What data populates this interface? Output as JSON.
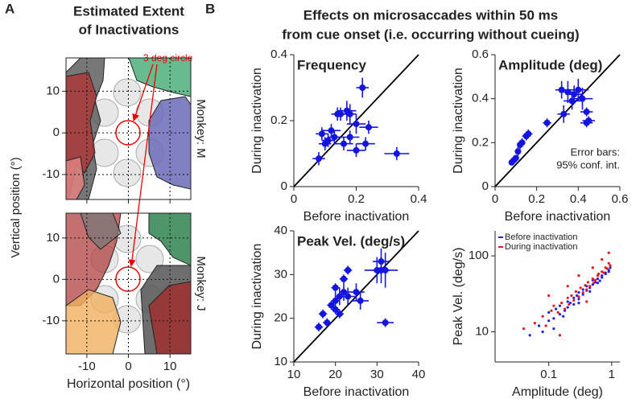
{
  "figure": {
    "panel_a_letter": "A",
    "panel_a_title": [
      "Estimated Extent",
      "of Inactivations"
    ],
    "panel_a_ylabel": "Vertical position (°)",
    "annotation": "3 deg circle",
    "panel_b_letter": "B",
    "panel_b_title": [
      "Effects on microsaccades within 50 ms",
      "from cue onset (i.e. occurring without cueing)"
    ]
  },
  "chart_data": [
    {
      "type": "map",
      "side_label": "Monkey: M",
      "xlim": [
        -15,
        15
      ],
      "ylim": [
        -16,
        18
      ],
      "xticks": [
        -10,
        0,
        10
      ],
      "yticks": [
        -10,
        0,
        10
      ],
      "xtick_labels": false,
      "grid": true
    },
    {
      "type": "map",
      "side_label": "Monkey: J",
      "xlabel": "Horizontal position (°)",
      "xlim": [
        -15,
        15
      ],
      "ylim": [
        -18,
        16
      ],
      "xticks": [
        -10,
        0,
        10
      ],
      "yticks": [
        -10,
        0,
        10
      ],
      "xtick_labels": true,
      "grid": true
    },
    {
      "type": "scatter",
      "title": "Frequency",
      "xlabel": "Before inactivation",
      "ylabel": "During inactivation",
      "xlim": [
        0,
        0.4
      ],
      "ylim": [
        0,
        0.4
      ],
      "xticks": [
        0,
        0.2,
        0.4
      ],
      "yticks": [
        0,
        0.2,
        0.4
      ],
      "identity_line": true,
      "series": [
        {
          "color": "#1515e0",
          "x": [
            0.22,
            0.17,
            0.15,
            0.18,
            0.14,
            0.2,
            0.24,
            0.09,
            0.12,
            0.13,
            0.1,
            0.11,
            0.08,
            0.16,
            0.2,
            0.23,
            0.33,
            0.18
          ],
          "values": [
            0.3,
            0.23,
            0.22,
            0.22,
            0.22,
            0.19,
            0.18,
            0.16,
            0.17,
            0.15,
            0.13,
            0.14,
            0.085,
            0.13,
            0.11,
            0.13,
            0.1,
            0.15
          ],
          "x_err": [
            0.02,
            0.03,
            0.02,
            0.02,
            0.02,
            0.03,
            0.03,
            0.02,
            0.03,
            0.02,
            0.02,
            0.02,
            0.02,
            0.03,
            0.03,
            0.03,
            0.04,
            0.03
          ],
          "y_err": [
            0.03,
            0.03,
            0.02,
            0.03,
            0.02,
            0.03,
            0.02,
            0.02,
            0.02,
            0.02,
            0.02,
            0.02,
            0.02,
            0.02,
            0.02,
            0.02,
            0.02,
            0.02
          ]
        }
      ]
    },
    {
      "type": "scatter",
      "title": "Amplitude (deg)",
      "xlabel": "Before inactivation",
      "ylabel": "During inactivation",
      "xlim": [
        0,
        0.6
      ],
      "ylim": [
        0,
        0.6
      ],
      "xticks": [
        0,
        0.2,
        0.4,
        0.6
      ],
      "yticks": [
        0,
        0.2,
        0.4,
        0.6
      ],
      "identity_line": true,
      "annotation": [
        "Error bars:",
        "95% conf. int."
      ],
      "series": [
        {
          "color": "#1515e0",
          "x": [
            0.08,
            0.09,
            0.1,
            0.11,
            0.12,
            0.13,
            0.15,
            0.16,
            0.25,
            0.32,
            0.35,
            0.38,
            0.4,
            0.37,
            0.42,
            0.33,
            0.44,
            0.45,
            0.44
          ],
          "values": [
            0.11,
            0.12,
            0.13,
            0.16,
            0.19,
            0.2,
            0.23,
            0.24,
            0.29,
            0.44,
            0.43,
            0.42,
            0.44,
            0.39,
            0.4,
            0.33,
            0.29,
            0.3,
            0.34
          ],
          "x_err": [
            0.01,
            0.01,
            0.01,
            0.01,
            0.01,
            0.01,
            0.02,
            0.02,
            0.02,
            0.03,
            0.04,
            0.04,
            0.05,
            0.04,
            0.05,
            0.03,
            0.03,
            0.03,
            0.03
          ],
          "y_err": [
            0.01,
            0.01,
            0.01,
            0.02,
            0.02,
            0.02,
            0.02,
            0.02,
            0.02,
            0.04,
            0.05,
            0.04,
            0.05,
            0.04,
            0.05,
            0.04,
            0.02,
            0.02,
            0.02
          ]
        }
      ]
    },
    {
      "type": "scatter",
      "title": "Peak Vel. (deg/s)",
      "xlabel": "Before inactivation",
      "ylabel": "During inactivation",
      "xlim": [
        10,
        40
      ],
      "ylim": [
        10,
        40
      ],
      "xticks": [
        10,
        20,
        30,
        40
      ],
      "yticks": [
        10,
        20,
        30,
        40
      ],
      "identity_line": true,
      "series": [
        {
          "color": "#1515e0",
          "x": [
            16,
            18,
            17,
            19,
            20,
            20,
            21,
            22,
            22,
            20,
            23,
            23,
            25,
            26,
            30,
            31,
            31,
            32,
            32,
            21
          ],
          "values": [
            18,
            19,
            21,
            23,
            24,
            27,
            25,
            26,
            29,
            22,
            31,
            25,
            26,
            24,
            31,
            31,
            33,
            31,
            19,
            21
          ],
          "x_err": [
            1,
            1,
            1,
            1,
            1,
            1,
            1,
            1,
            1,
            1,
            1,
            2,
            2,
            2,
            3,
            2,
            2,
            3,
            2,
            1
          ],
          "y_err": [
            1,
            1,
            1,
            1,
            2,
            1,
            2,
            2,
            1,
            1,
            1,
            2,
            2,
            2,
            3,
            3,
            3,
            4,
            1,
            1
          ]
        }
      ]
    },
    {
      "type": "scatter",
      "xlabel": "Amplitude (deg)",
      "ylabel": "Peak Vel. (deg/s)",
      "xscale": "log",
      "yscale": "log",
      "xlim": [
        0.014,
        1.35
      ],
      "ylim": [
        4,
        214
      ],
      "xticks": [
        0.1,
        1
      ],
      "yticks": [
        10,
        100
      ],
      "legend": "upper left",
      "series": [
        {
          "name": "Before inactivation",
          "color": "#2020e8",
          "x": [
            0.05,
            0.07,
            0.08,
            0.1,
            0.1,
            0.12,
            0.13,
            0.15,
            0.15,
            0.18,
            0.2,
            0.2,
            0.22,
            0.25,
            0.25,
            0.28,
            0.3,
            0.3,
            0.35,
            0.35,
            0.4,
            0.4,
            0.45,
            0.5,
            0.5,
            0.55,
            0.6,
            0.6,
            0.7,
            0.7,
            0.8,
            0.8,
            0.9,
            0.9,
            0.95,
            0.12,
            0.17,
            0.3,
            0.45,
            0.65
          ],
          "values": [
            9,
            12,
            10,
            14,
            18,
            15,
            20,
            17,
            22,
            19,
            25,
            21,
            24,
            28,
            23,
            30,
            27,
            33,
            31,
            36,
            35,
            40,
            38,
            42,
            48,
            45,
            50,
            44,
            55,
            52,
            60,
            58,
            65,
            62,
            70,
            11,
            16,
            24,
            34,
            47
          ]
        },
        {
          "name": "During inactivation",
          "color": "#e81818",
          "x": [
            0.04,
            0.06,
            0.08,
            0.09,
            0.11,
            0.12,
            0.14,
            0.16,
            0.18,
            0.2,
            0.21,
            0.23,
            0.25,
            0.27,
            0.3,
            0.32,
            0.35,
            0.38,
            0.4,
            0.42,
            0.45,
            0.5,
            0.52,
            0.55,
            0.6,
            0.62,
            0.7,
            0.75,
            0.8,
            0.85,
            0.9,
            0.95,
            0.1,
            0.2,
            0.3,
            0.5,
            0.7,
            0.9,
            0.15,
            0.4
          ],
          "values": [
            11,
            13,
            16,
            12,
            19,
            22,
            18,
            24,
            20,
            28,
            23,
            30,
            26,
            34,
            29,
            38,
            33,
            41,
            36,
            45,
            40,
            50,
            44,
            48,
            55,
            58,
            62,
            60,
            70,
            68,
            80,
            75,
            30,
            40,
            55,
            70,
            90,
            110,
            9,
            25
          ]
        }
      ]
    }
  ]
}
